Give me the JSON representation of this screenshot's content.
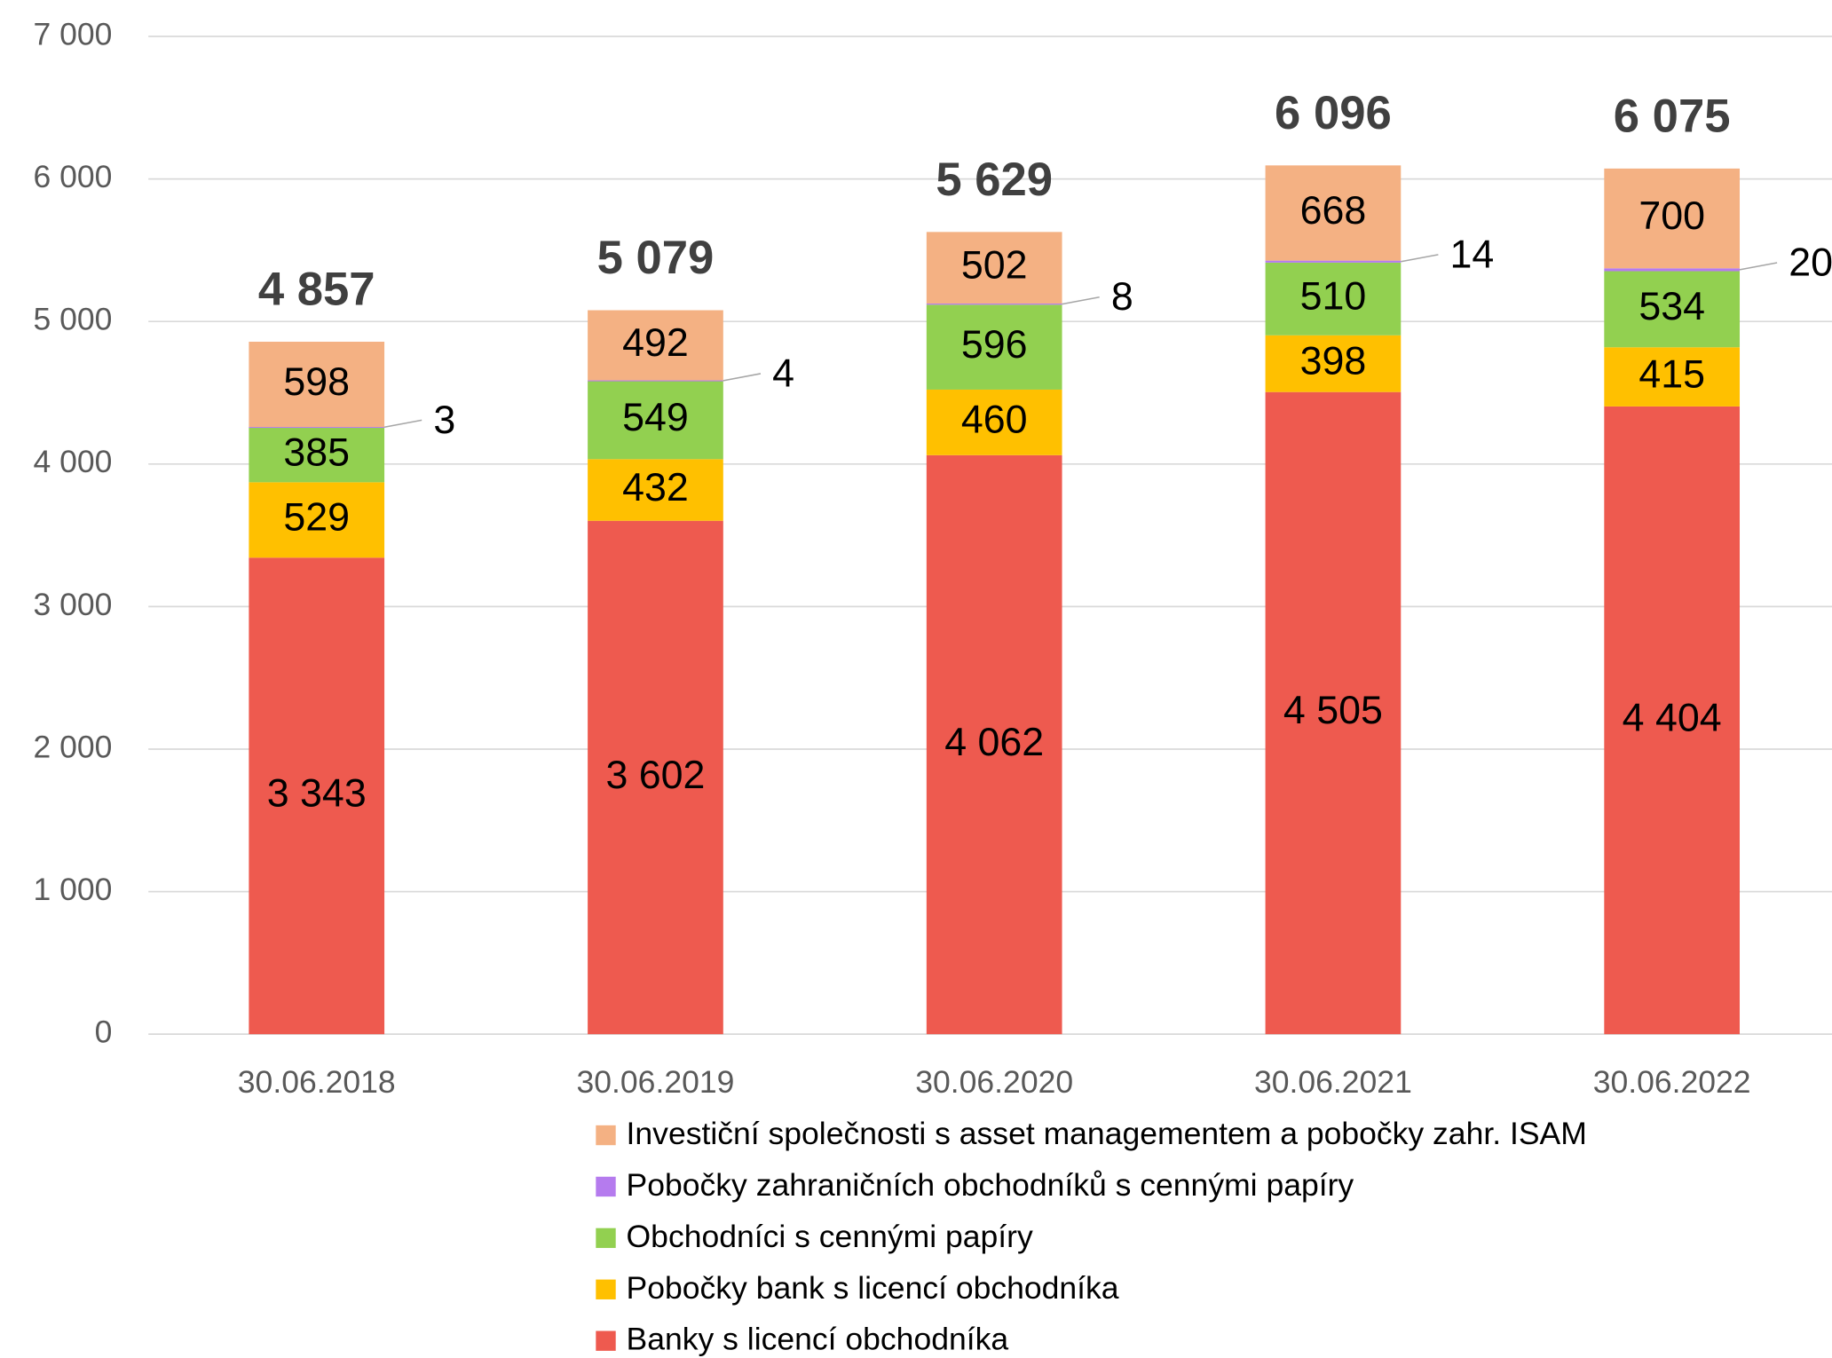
{
  "chart_data": {
    "type": "stacked_bar",
    "categories": [
      "30.06.2018",
      "30.06.2019",
      "30.06.2020",
      "30.06.2021",
      "30.06.2022"
    ],
    "series": [
      {
        "name": "Banky s licencí obchodníka",
        "color": "#ee5a4f",
        "values": [
          3343,
          3602,
          4062,
          4505,
          4404
        ],
        "value_labels": [
          "3 343",
          "3 602",
          "4 062",
          "4 505",
          "4 404"
        ]
      },
      {
        "name": "Pobočky bank s licencí obchodníka",
        "color": "#ffc000",
        "values": [
          529,
          432,
          460,
          398,
          415
        ]
      },
      {
        "name": "Obchodníci s cennými papíry",
        "color": "#92d050",
        "values": [
          385,
          549,
          596,
          510,
          534
        ]
      },
      {
        "name": "Pobočky zahraničních obchodníků s cennými papíry",
        "color": "#b57bee",
        "values": [
          3,
          4,
          8,
          14,
          20
        ]
      },
      {
        "name": "Investiční společnosti s asset managementem a pobočky zahr. ISAM",
        "color": "#f4b183",
        "values": [
          598,
          492,
          502,
          668,
          700
        ]
      }
    ],
    "totals": [
      4857,
      5079,
      5629,
      6096,
      6075
    ],
    "total_labels": [
      "4 857",
      "5 079",
      "5 629",
      "6 096",
      "6 075"
    ],
    "ylim": [
      0,
      7000
    ],
    "yticks": [
      0,
      {
        "value": 1000,
        "label": "1 000"
      },
      {
        "value": 2000,
        "label": "2 000"
      },
      {
        "value": 3000,
        "label": "3 000"
      },
      {
        "value": 4000,
        "label": "4 000"
      },
      {
        "value": 5000,
        "label": "5 000"
      },
      {
        "value": 6000,
        "label": "6 000"
      },
      {
        "value": 7000,
        "label": "7 000"
      }
    ],
    "grid": true
  }
}
